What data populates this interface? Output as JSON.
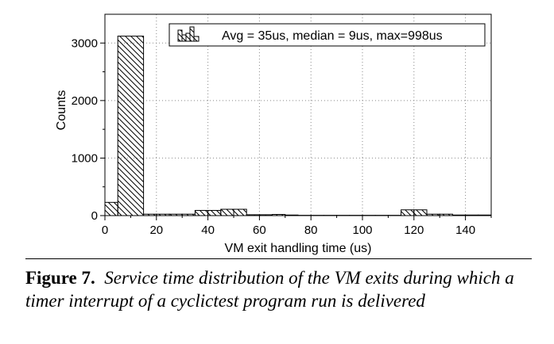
{
  "chart_data": {
    "type": "bar",
    "title": "",
    "xlabel": "VM exit handling time (us)",
    "ylabel": "Counts",
    "xlim": [
      0,
      150
    ],
    "ylim": [
      0,
      3500
    ],
    "xticks": [
      0,
      20,
      40,
      60,
      80,
      100,
      120,
      140
    ],
    "xtick_labels": [
      "0",
      "20",
      "40",
      "60",
      "80",
      "100",
      "120",
      "140"
    ],
    "yticks": [
      0,
      1000,
      2000,
      3000
    ],
    "ytick_labels": [
      "0",
      "1000",
      "2000",
      "3000"
    ],
    "grid": true,
    "bin_width": 5,
    "bins": [
      {
        "x0": 0,
        "x1": 5,
        "count": 230
      },
      {
        "x0": 5,
        "x1": 15,
        "count": 3120
      },
      {
        "x0": 15,
        "x1": 20,
        "count": 25
      },
      {
        "x0": 20,
        "x1": 25,
        "count": 25
      },
      {
        "x0": 25,
        "x1": 30,
        "count": 25
      },
      {
        "x0": 30,
        "x1": 35,
        "count": 25
      },
      {
        "x0": 35,
        "x1": 40,
        "count": 90
      },
      {
        "x0": 40,
        "x1": 45,
        "count": 90
      },
      {
        "x0": 45,
        "x1": 50,
        "count": 110
      },
      {
        "x0": 50,
        "x1": 55,
        "count": 110
      },
      {
        "x0": 55,
        "x1": 60,
        "count": 15
      },
      {
        "x0": 60,
        "x1": 65,
        "count": 15
      },
      {
        "x0": 65,
        "x1": 70,
        "count": 20
      },
      {
        "x0": 70,
        "x1": 75,
        "count": 10
      },
      {
        "x0": 75,
        "x1": 80,
        "count": 5
      },
      {
        "x0": 80,
        "x1": 85,
        "count": 5
      },
      {
        "x0": 85,
        "x1": 90,
        "count": 5
      },
      {
        "x0": 90,
        "x1": 95,
        "count": 5
      },
      {
        "x0": 95,
        "x1": 100,
        "count": 5
      },
      {
        "x0": 100,
        "x1": 105,
        "count": 5
      },
      {
        "x0": 105,
        "x1": 110,
        "count": 5
      },
      {
        "x0": 110,
        "x1": 115,
        "count": 5
      },
      {
        "x0": 115,
        "x1": 120,
        "count": 100
      },
      {
        "x0": 120,
        "x1": 125,
        "count": 100
      },
      {
        "x0": 125,
        "x1": 130,
        "count": 25
      },
      {
        "x0": 130,
        "x1": 135,
        "count": 25
      },
      {
        "x0": 135,
        "x1": 140,
        "count": 10
      },
      {
        "x0": 140,
        "x1": 145,
        "count": 10
      },
      {
        "x0": 145,
        "x1": 150,
        "count": 10
      }
    ],
    "legend": {
      "position": "top-right",
      "entries": [
        "Avg = 35us, median = 9us, max=998us"
      ]
    },
    "fill_pattern": "diagonal-hatch"
  },
  "caption": {
    "label": "Figure 7.",
    "text": "Service time distribution of the VM exits during which a timer interrupt of a cyclictest program run is delivered"
  }
}
